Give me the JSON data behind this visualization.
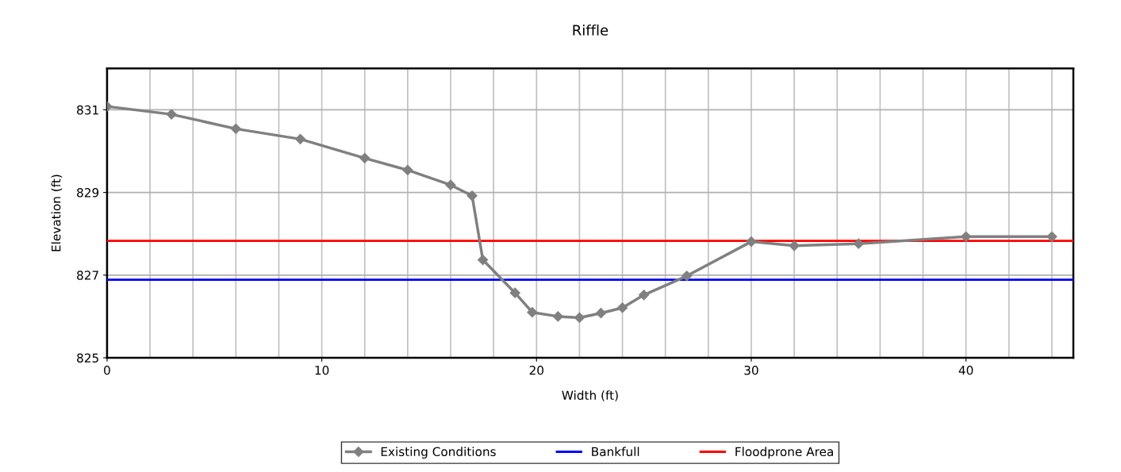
{
  "chart_data": {
    "type": "line",
    "title": "Riffle",
    "xlabel": "Width (ft)",
    "ylabel": "Elevation (ft)",
    "x": [
      0,
      3,
      6,
      9,
      12,
      14,
      16,
      17,
      17.5,
      19,
      19.8,
      21,
      22,
      23,
      24,
      25,
      27,
      30,
      32,
      35,
      40,
      44
    ],
    "series": [
      {
        "name": "Existing Conditions",
        "color": "#808080",
        "values": [
          831.08,
          830.89,
          830.54,
          830.29,
          829.83,
          829.54,
          829.18,
          828.92,
          827.37,
          826.57,
          826.1,
          826.0,
          825.97,
          826.08,
          826.21,
          826.52,
          826.98,
          827.81,
          827.71,
          827.76,
          827.93,
          827.93
        ]
      }
    ],
    "ref_lines": [
      {
        "axis": "y",
        "value": 826.89,
        "label": "Bankfull",
        "color": "#0000ff"
      },
      {
        "axis": "y",
        "value": 827.83,
        "label": "Floodprone Area",
        "color": "#ff0000"
      }
    ],
    "xlim": [
      0,
      45
    ],
    "xticks": [
      0,
      10,
      20,
      30,
      40
    ],
    "ylim": [
      825,
      832
    ],
    "yticks": [
      825,
      827,
      829,
      831
    ],
    "grid": true,
    "marker": "diamond",
    "line_style": "solid",
    "legend": "bottom"
  }
}
